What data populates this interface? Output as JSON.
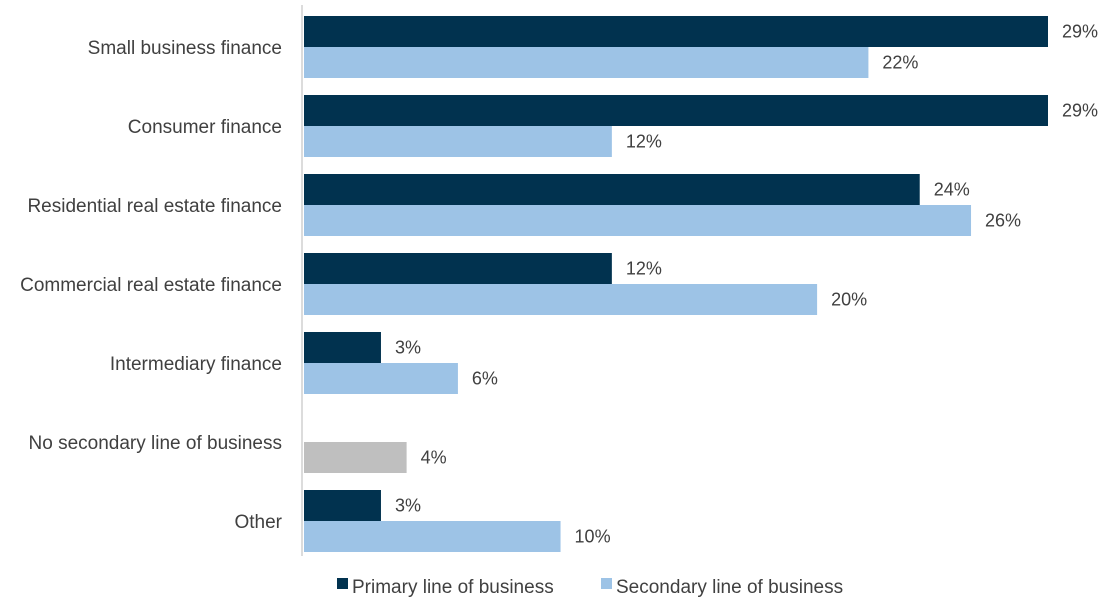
{
  "chart_data": {
    "type": "bar",
    "orientation": "horizontal",
    "title": "",
    "xlabel": "",
    "ylabel": "",
    "xlim": [
      0,
      30
    ],
    "grid": false,
    "legend_position": "bottom",
    "categories": [
      "Small business finance",
      "Consumer finance",
      "Residential real estate finance",
      "Commercial real estate finance",
      "Intermediary finance",
      "No secondary line of business",
      "Other"
    ],
    "series": [
      {
        "name": "Primary line of business",
        "color": "#01324f",
        "values": [
          29,
          29,
          24,
          12,
          3,
          null,
          3
        ],
        "labels": [
          "29%",
          "29%",
          "24%",
          "12%",
          "3%",
          "",
          "3%"
        ]
      },
      {
        "name": "Secondary line of business",
        "color": "#9dc3e6",
        "values": [
          22,
          12,
          26,
          20,
          6,
          4,
          10
        ],
        "labels": [
          "22%",
          "12%",
          "26%",
          "20%",
          "6%",
          "4%",
          "10%"
        ],
        "point_colors": [
          "#9dc3e6",
          "#9dc3e6",
          "#9dc3e6",
          "#9dc3e6",
          "#9dc3e6",
          "#bfbfbf",
          "#9dc3e6"
        ]
      }
    ]
  }
}
